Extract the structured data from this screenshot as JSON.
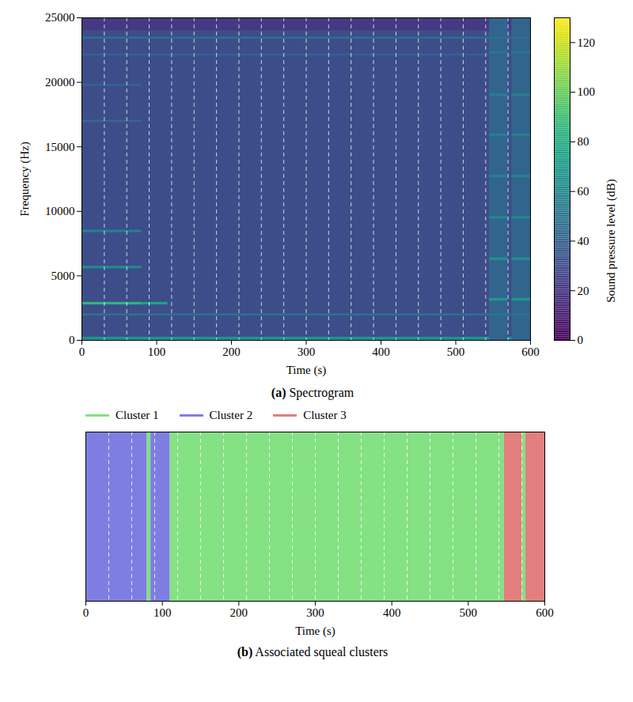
{
  "chart_data": [
    {
      "type": "heatmap",
      "caption": "(a) Spectrogram",
      "xlabel": "Time (s)",
      "ylabel": "Frequency (Hz)",
      "xlim": [
        0,
        600
      ],
      "xticks": [
        0,
        100,
        200,
        300,
        400,
        500,
        600
      ],
      "ylim": [
        0,
        25000
      ],
      "yticks": [
        0,
        5000,
        10000,
        15000,
        20000,
        25000
      ],
      "boundaries": [
        30,
        60,
        90,
        120,
        150,
        180,
        210,
        240,
        270,
        300,
        330,
        360,
        390,
        420,
        450,
        480,
        510,
        540,
        570
      ],
      "line_style": "dashed",
      "colorbar": {
        "label": "Sound pressure level (dB)",
        "range": [
          0,
          130
        ],
        "ticks": [
          0,
          20,
          40,
          60,
          80,
          100,
          120
        ]
      },
      "cells": [
        {
          "x": [
            0,
            600
          ],
          "y": [
            0,
            25000
          ],
          "value": 30
        },
        {
          "x": [
            0,
            600
          ],
          "y": [
            24000,
            25000
          ],
          "value": 22
        },
        {
          "x": [
            0,
            600
          ],
          "y": [
            0,
            250
          ],
          "value": 65
        },
        {
          "x": [
            545,
            570
          ],
          "y": [
            0,
            25000
          ],
          "value": 42
        },
        {
          "x": [
            575,
            600
          ],
          "y": [
            0,
            25000
          ],
          "value": 42
        },
        {
          "x": [
            0,
            600
          ],
          "y": [
            1900,
            2050
          ],
          "value": 50
        },
        {
          "x": [
            0,
            600
          ],
          "y": [
            23350,
            23500
          ],
          "value": 48
        },
        {
          "x": [
            0,
            600
          ],
          "y": [
            22050,
            22200
          ],
          "value": 40
        },
        {
          "x": [
            0,
            80
          ],
          "y": [
            2750,
            2950
          ],
          "value": 85
        },
        {
          "x": [
            80,
            115
          ],
          "y": [
            2750,
            2950
          ],
          "value": 75
        },
        {
          "x": [
            0,
            80
          ],
          "y": [
            5550,
            5750
          ],
          "value": 62
        },
        {
          "x": [
            0,
            80
          ],
          "y": [
            8350,
            8550
          ],
          "value": 55
        },
        {
          "x": [
            0,
            80
          ],
          "y": [
            16900,
            17050
          ],
          "value": 45
        },
        {
          "x": [
            0,
            80
          ],
          "y": [
            19700,
            19850
          ],
          "value": 42
        },
        {
          "x": [
            545,
            570
          ],
          "y": [
            3050,
            3250
          ],
          "value": 70
        },
        {
          "x": [
            545,
            570
          ],
          "y": [
            6200,
            6400
          ],
          "value": 65
        },
        {
          "x": [
            545,
            570
          ],
          "y": [
            9400,
            9600
          ],
          "value": 60
        },
        {
          "x": [
            545,
            570
          ],
          "y": [
            12600,
            12800
          ],
          "value": 58
        },
        {
          "x": [
            545,
            570
          ],
          "y": [
            15800,
            16000
          ],
          "value": 55
        },
        {
          "x": [
            545,
            570
          ],
          "y": [
            18900,
            19100
          ],
          "value": 55
        },
        {
          "x": [
            545,
            570
          ],
          "y": [
            22200,
            22400
          ],
          "value": 50
        },
        {
          "x": [
            575,
            600
          ],
          "y": [
            3050,
            3250
          ],
          "value": 70
        },
        {
          "x": [
            575,
            600
          ],
          "y": [
            6200,
            6400
          ],
          "value": 65
        },
        {
          "x": [
            575,
            600
          ],
          "y": [
            9400,
            9600
          ],
          "value": 60
        },
        {
          "x": [
            575,
            600
          ],
          "y": [
            12600,
            12800
          ],
          "value": 58
        },
        {
          "x": [
            575,
            600
          ],
          "y": [
            15800,
            16000
          ],
          "value": 55
        },
        {
          "x": [
            575,
            600
          ],
          "y": [
            18900,
            19100
          ],
          "value": 55
        },
        {
          "x": [
            575,
            600
          ],
          "y": [
            22200,
            22400
          ],
          "value": 50
        }
      ]
    },
    {
      "type": "timeline",
      "caption": "(b) Associated squeal clusters",
      "xlabel": "Time (s)",
      "xlim": [
        0,
        600
      ],
      "xticks": [
        0,
        100,
        200,
        300,
        400,
        500,
        600
      ],
      "tick_labels": "x",
      "legend": "top",
      "boundaries": [
        30,
        60,
        90,
        120,
        150,
        180,
        210,
        240,
        270,
        300,
        330,
        360,
        390,
        420,
        450,
        480,
        510,
        540,
        570
      ],
      "line_style": "dashed",
      "series": [
        {
          "name": "Cluster 1",
          "color": "#84e184",
          "intervals": [
            [
              80,
              85
            ],
            [
              110,
              547
            ],
            [
              570,
              575
            ]
          ]
        },
        {
          "name": "Cluster 2",
          "color": "#7e7ee2",
          "intervals": [
            [
              0,
              80
            ],
            [
              85,
              110
            ]
          ]
        },
        {
          "name": "Cluster 3",
          "color": "#e27e7e",
          "intervals": [
            [
              547,
              570
            ],
            [
              575,
              600
            ]
          ]
        }
      ]
    }
  ]
}
